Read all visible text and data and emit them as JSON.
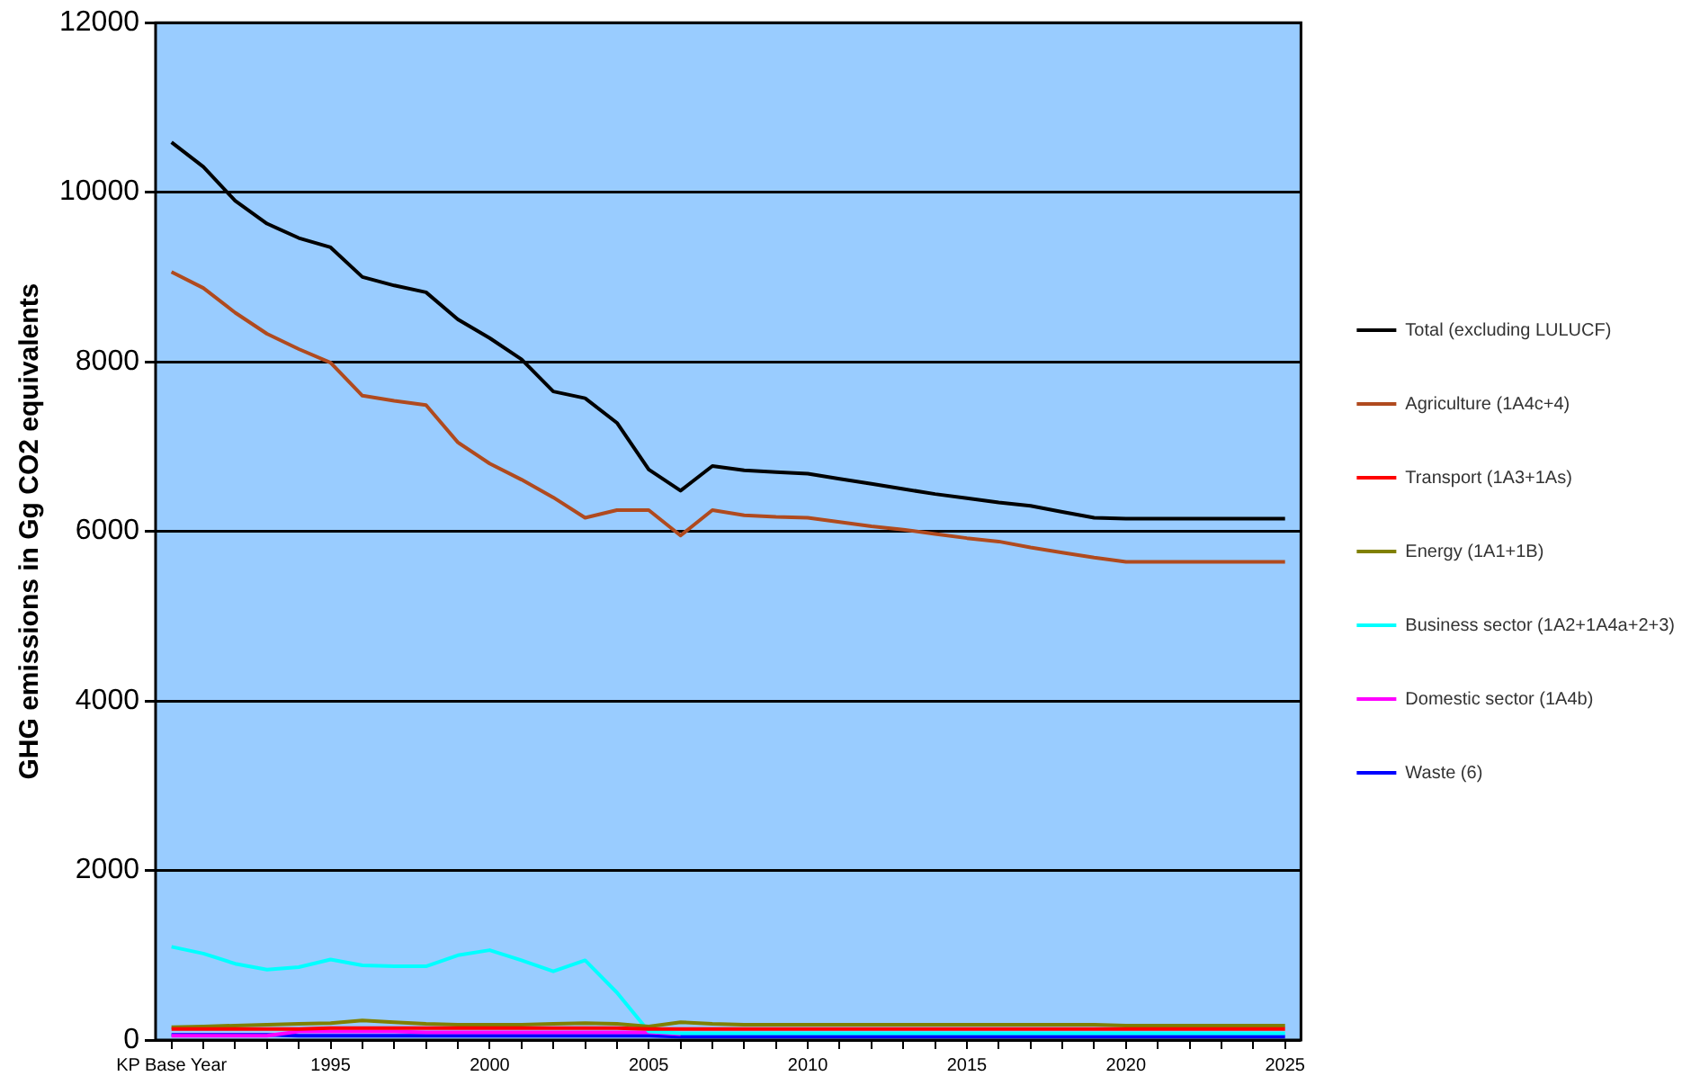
{
  "chart_data": {
    "type": "line",
    "ylabel": "GHG emissions in Gg CO2 equivalents",
    "categories": [
      "KP Base Year",
      null,
      null,
      null,
      null,
      "1995",
      null,
      null,
      null,
      null,
      "2000",
      null,
      null,
      null,
      null,
      "2005",
      null,
      null,
      null,
      null,
      "2010",
      null,
      null,
      null,
      null,
      "2015",
      null,
      null,
      null,
      null,
      "2020",
      null,
      null,
      null,
      null,
      "2025"
    ],
    "series": [
      {
        "name": "Total (excluding LULUCF)",
        "color": "#000000",
        "values": [
          10590,
          10300,
          9900,
          9630,
          9460,
          9350,
          9000,
          8900,
          8820,
          8500,
          8280,
          8030,
          7650,
          7570,
          7280,
          6730,
          6480,
          6770,
          6720,
          6700,
          6680,
          6620,
          6560,
          6500,
          6440,
          6390,
          6340,
          6300,
          6230,
          6160,
          6150,
          6150,
          6150,
          6150,
          6150,
          6150
        ]
      },
      {
        "name": "Agriculture (1A4c+4)",
        "color": "#b04a1e",
        "values": [
          9060,
          8870,
          8580,
          8330,
          8150,
          7990,
          7600,
          7540,
          7490,
          7050,
          6800,
          6610,
          6400,
          6160,
          6250,
          6250,
          5950,
          6250,
          6190,
          6170,
          6160,
          6110,
          6060,
          6020,
          5970,
          5920,
          5880,
          5810,
          5750,
          5690,
          5640,
          5640,
          5640,
          5640,
          5640,
          5640
        ]
      },
      {
        "name": "Transport (1A3+1As)",
        "color": "#ff0000",
        "values": [
          130,
          130,
          130,
          130,
          130,
          140,
          140,
          140,
          140,
          140,
          140,
          140,
          140,
          140,
          140,
          130,
          130,
          130,
          130,
          130,
          130,
          130,
          130,
          130,
          130,
          130,
          130,
          130,
          130,
          130,
          130,
          130,
          130,
          130,
          130,
          130
        ]
      },
      {
        "name": "Energy (1A1+1B)",
        "color": "#808000",
        "values": [
          150,
          160,
          170,
          180,
          190,
          200,
          230,
          210,
          190,
          180,
          180,
          180,
          190,
          200,
          190,
          160,
          210,
          190,
          180,
          180,
          180,
          180,
          180,
          180,
          180,
          180,
          180,
          180,
          180,
          180,
          170,
          170,
          170,
          170,
          170,
          170
        ]
      },
      {
        "name": "Business sector (1A2+1A4a+2+3)",
        "color": "#00ffff",
        "values": [
          1100,
          1020,
          900,
          830,
          860,
          950,
          880,
          870,
          870,
          1000,
          1060,
          940,
          810,
          940,
          560,
          100,
          80,
          80,
          80,
          80,
          80,
          80,
          80,
          80,
          80,
          80,
          80,
          80,
          80,
          80,
          80,
          80,
          80,
          80,
          80,
          80
        ]
      },
      {
        "name": "Domestic sector (1A4b)",
        "color": "#ff00ff",
        "values": [
          50,
          50,
          50,
          50,
          100,
          100,
          100,
          100,
          90,
          90,
          90,
          90,
          90,
          90,
          90,
          90,
          70,
          null,
          null,
          null,
          null,
          null,
          null,
          null,
          null,
          null,
          null,
          null,
          null,
          null,
          null,
          null,
          null,
          null,
          null,
          null
        ]
      },
      {
        "name": "Waste (6)",
        "color": "#0000ff",
        "values": [
          60,
          60,
          60,
          60,
          50,
          50,
          50,
          50,
          50,
          50,
          50,
          50,
          50,
          50,
          50,
          50,
          40,
          40,
          40,
          40,
          40,
          40,
          40,
          40,
          40,
          40,
          40,
          40,
          40,
          40,
          40,
          40,
          40,
          40,
          40,
          40
        ]
      }
    ],
    "ylim": [
      0,
      12000
    ],
    "yticks": [
      0,
      2000,
      4000,
      6000,
      8000,
      10000,
      12000
    ],
    "grid": "y",
    "legend": "right",
    "marker": "none",
    "line_style": "solid"
  }
}
